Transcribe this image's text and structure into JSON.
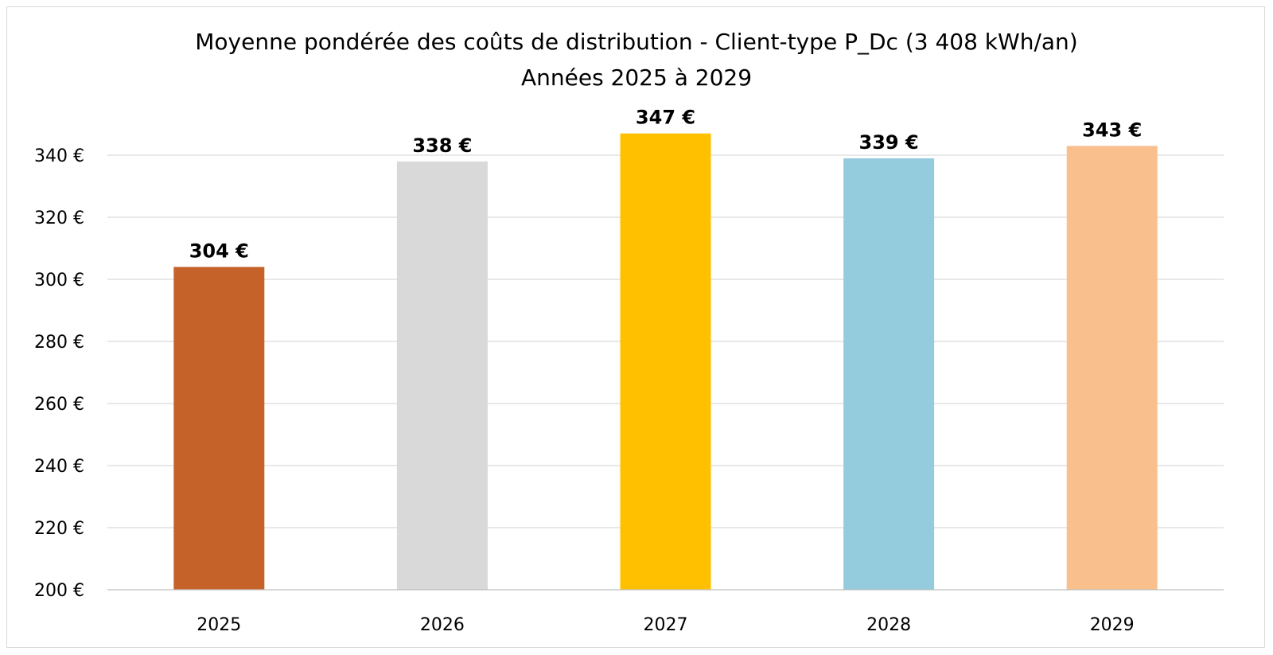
{
  "chart_data": {
    "type": "bar",
    "title": "Moyenne pondérée des coûts de distribution - Client-type P_Dc (3 408 kWh/an)",
    "subtitle": "Années 2025 à 2029",
    "xlabel": "",
    "ylabel": "",
    "categories": [
      "2025",
      "2026",
      "2027",
      "2028",
      "2029"
    ],
    "values": [
      304,
      338,
      347,
      339,
      343
    ],
    "data_labels": [
      "304 €",
      "338 €",
      "347 €",
      "339 €",
      "343 €"
    ],
    "colors": [
      "#C5622A",
      "#D9D9D9",
      "#FFC000",
      "#94CCDD",
      "#F9C08E"
    ],
    "ylim": [
      200,
      340
    ],
    "y_ticks": [
      200,
      220,
      240,
      260,
      280,
      300,
      320,
      340
    ],
    "y_tick_labels": [
      "200 €",
      "220 €",
      "240 €",
      "260 €",
      "280 €",
      "300 €",
      "320 €",
      "340 €"
    ],
    "grid": true,
    "legend": "none"
  }
}
